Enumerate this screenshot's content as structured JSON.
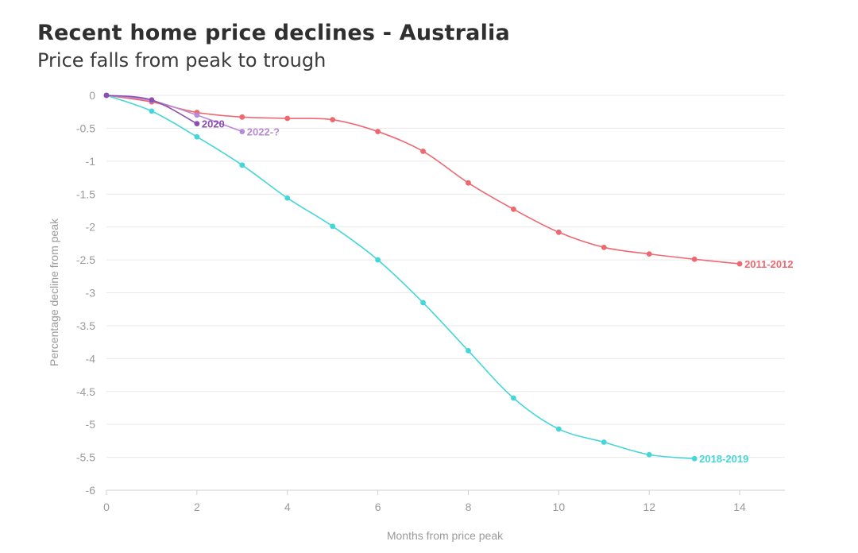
{
  "chart_data": {
    "type": "line",
    "title": "Recent home price declines - Australia",
    "subtitle": "Price falls from peak to trough",
    "xlabel": "Months from price peak",
    "ylabel": "Percentage decline from peak",
    "xlim": [
      0,
      15
    ],
    "ylim": [
      -6,
      0
    ],
    "xticks": [
      0,
      2,
      4,
      6,
      8,
      10,
      12,
      14
    ],
    "yticks": [
      0,
      -0.5,
      -1,
      -1.5,
      -2,
      -2.5,
      -3,
      -3.5,
      -4,
      -4.5,
      -5,
      -5.5,
      -6
    ],
    "grid": true,
    "series": [
      {
        "name": "2011-2012",
        "color": "#ee6870",
        "x": [
          0,
          1,
          2,
          3,
          4,
          5,
          6,
          7,
          8,
          9,
          10,
          11,
          12,
          13,
          14
        ],
        "y": [
          0,
          -0.1,
          -0.26,
          -0.33,
          -0.35,
          -0.37,
          -0.55,
          -0.85,
          -1.33,
          -1.73,
          -2.08,
          -2.31,
          -2.41,
          -2.49,
          -2.56
        ]
      },
      {
        "name": "2018-2019",
        "color": "#45d6d8",
        "x": [
          0,
          1,
          2,
          3,
          4,
          5,
          6,
          7,
          8,
          9,
          10,
          11,
          12,
          13
        ],
        "y": [
          0,
          -0.24,
          -0.63,
          -1.06,
          -1.56,
          -1.99,
          -2.5,
          -3.15,
          -3.88,
          -4.6,
          -5.07,
          -5.27,
          -5.46,
          -5.52
        ]
      },
      {
        "name": "2020",
        "color": "#8a4fb0",
        "x": [
          0,
          1,
          2
        ],
        "y": [
          0,
          -0.07,
          -0.43
        ]
      },
      {
        "name": "2022-?",
        "color": "#b88bd8",
        "x": [
          0,
          1,
          2,
          3
        ],
        "y": [
          0,
          -0.08,
          -0.3,
          -0.55
        ]
      }
    ]
  }
}
